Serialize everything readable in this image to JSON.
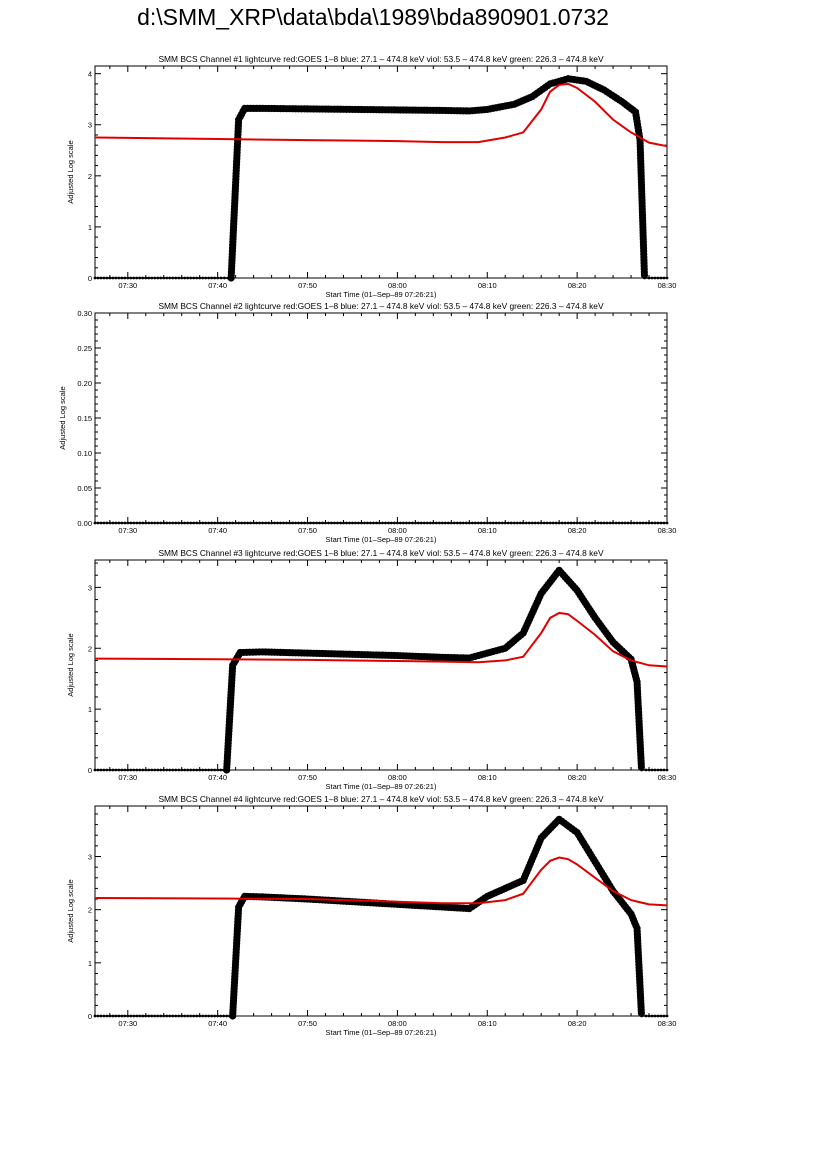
{
  "page_title": "d:\\SMM_XRP\\data\\bda\\1989\\bda890901.0732",
  "colors": {
    "goes": "#e00000",
    "bcs": "#000000",
    "axis": "#000000"
  },
  "chart_data": [
    {
      "type": "scatter",
      "title": "SMM BCS Channel #1 lightcurve  red:GOES 1–8  blue: 27.1 – 474.8 keV  viol: 53.5 – 474.8 keV  green: 226.3 – 474.8 keV",
      "xlabel": "Start Time (01–Sep–89 07:26:21)",
      "ylabel": "Adjusted Log scale",
      "xlim": [
        "07:26:21",
        "08:30"
      ],
      "ylim": [
        0,
        4.15
      ],
      "x_ticks": [
        "07:30",
        "07:40",
        "07:50",
        "08:00",
        "08:10",
        "08:20",
        "08:30"
      ],
      "y_ticks": [
        "0",
        "1",
        "2",
        "3",
        "4"
      ],
      "series": [
        {
          "color": "black",
          "style": "markers",
          "x": [
            "07:26:21",
            "07:30",
            "07:35",
            "07:40",
            "07:41:30",
            "07:42:20",
            "07:43",
            "07:45",
            "07:50",
            "07:55",
            "08:00",
            "08:05",
            "08:08",
            "08:10",
            "08:13",
            "08:15",
            "08:17",
            "08:19",
            "08:21",
            "08:23",
            "08:25",
            "08:26:30",
            "08:27:00",
            "08:27:30",
            "08:28",
            "08:30"
          ],
          "y": [
            0,
            0,
            0,
            0,
            0,
            3.1,
            3.32,
            3.32,
            3.31,
            3.3,
            3.29,
            3.28,
            3.27,
            3.3,
            3.4,
            3.55,
            3.8,
            3.9,
            3.85,
            3.68,
            3.45,
            3.25,
            2.7,
            0,
            0,
            0
          ]
        },
        {
          "color": "red",
          "style": "line",
          "x": [
            "07:26:21",
            "07:40",
            "07:50",
            "08:00",
            "08:05",
            "08:09",
            "08:12",
            "08:14",
            "08:16",
            "08:17",
            "08:18",
            "08:19",
            "08:20",
            "08:22",
            "08:24",
            "08:26",
            "08:28",
            "08:30"
          ],
          "y": [
            2.75,
            2.72,
            2.7,
            2.68,
            2.66,
            2.66,
            2.75,
            2.85,
            3.3,
            3.65,
            3.78,
            3.8,
            3.72,
            3.45,
            3.1,
            2.85,
            2.65,
            2.58
          ]
        }
      ]
    },
    {
      "type": "scatter",
      "title": "SMM BCS Channel #2 lightcurve  red:GOES 1–8  blue: 27.1 – 474.8 keV  viol: 53.5 – 474.8 keV  green: 226.3 – 474.8 keV",
      "xlabel": "Start Time (01–Sep–89 07:26:21)",
      "ylabel": "Adjusted Log scale",
      "xlim": [
        "07:26:21",
        "08:30"
      ],
      "ylim": [
        0,
        0.3
      ],
      "x_ticks": [
        "07:30",
        "07:40",
        "07:50",
        "08:00",
        "08:10",
        "08:20",
        "08:30"
      ],
      "y_ticks": [
        "0.00",
        "0.05",
        "0.10",
        "0.15",
        "0.20",
        "0.25",
        "0.30"
      ],
      "series": [
        {
          "color": "black",
          "style": "markers",
          "x": [
            "07:26:21",
            "07:35",
            "07:45",
            "07:55",
            "08:05",
            "08:15",
            "08:25",
            "08:30"
          ],
          "y": [
            0,
            0,
            0,
            0,
            0,
            0,
            0,
            0
          ]
        }
      ]
    },
    {
      "type": "scatter",
      "title": "SMM BCS Channel #3 lightcurve  red:GOES 1–8  blue: 27.1 – 474.8 keV  viol: 53.5 – 474.8 keV  green: 226.3 – 474.8 keV",
      "xlabel": "Start Time (01–Sep–89 07:26:21)",
      "ylabel": "Adjusted Log scale",
      "xlim": [
        "07:26:21",
        "08:30"
      ],
      "ylim": [
        0,
        3.45
      ],
      "x_ticks": [
        "07:30",
        "07:40",
        "07:50",
        "08:00",
        "08:10",
        "08:20",
        "08:30"
      ],
      "y_ticks": [
        "0",
        "1",
        "2",
        "3"
      ],
      "series": [
        {
          "color": "black",
          "style": "markers",
          "x": [
            "07:26:21",
            "07:30",
            "07:35",
            "07:40",
            "07:41:00",
            "07:41:40",
            "07:42:30",
            "07:45",
            "07:50",
            "07:55",
            "08:00",
            "08:05",
            "08:08",
            "08:10",
            "08:12",
            "08:14",
            "08:16",
            "08:18",
            "08:20",
            "08:22",
            "08:24",
            "08:26",
            "08:26:40",
            "08:27:10",
            "08:27:40",
            "08:30"
          ],
          "y": [
            0,
            0,
            0,
            0,
            0,
            1.72,
            1.93,
            1.94,
            1.92,
            1.9,
            1.88,
            1.85,
            1.84,
            1.92,
            2.0,
            2.25,
            2.9,
            3.28,
            2.95,
            2.5,
            2.1,
            1.82,
            1.45,
            0,
            0,
            0
          ]
        },
        {
          "color": "red",
          "style": "line",
          "x": [
            "07:26:21",
            "07:40",
            "07:50",
            "08:00",
            "08:05",
            "08:09",
            "08:12",
            "08:14",
            "08:16",
            "08:17",
            "08:18",
            "08:19",
            "08:20",
            "08:22",
            "08:24",
            "08:26",
            "08:28",
            "08:30"
          ],
          "y": [
            1.83,
            1.82,
            1.81,
            1.79,
            1.78,
            1.77,
            1.8,
            1.86,
            2.25,
            2.5,
            2.58,
            2.56,
            2.45,
            2.22,
            1.95,
            1.8,
            1.72,
            1.7
          ]
        }
      ]
    },
    {
      "type": "scatter",
      "title": "SMM BCS Channel #4 lightcurve  red:GOES 1–8  blue: 27.1 – 474.8 keV  viol: 53.5 – 474.8 keV  green: 226.3 – 474.8 keV",
      "xlabel": "Start Time (01–Sep–89 07:26:21)",
      "ylabel": "Adjusted Log scale",
      "xlim": [
        "07:26:21",
        "08:30"
      ],
      "ylim": [
        0,
        3.95
      ],
      "x_ticks": [
        "07:30",
        "07:40",
        "07:50",
        "08:00",
        "08:10",
        "08:20",
        "08:30"
      ],
      "y_ticks": [
        "0",
        "1",
        "2",
        "3"
      ],
      "series": [
        {
          "color": "black",
          "style": "markers",
          "x": [
            "07:26:21",
            "07:30",
            "07:35",
            "07:40",
            "07:41:40",
            "07:42:20",
            "07:43",
            "07:45",
            "07:50",
            "07:55",
            "08:00",
            "08:05",
            "08:08",
            "08:10",
            "08:12",
            "08:14",
            "08:16",
            "08:18",
            "08:20",
            "08:22",
            "08:24",
            "08:26",
            "08:26:40",
            "08:27:10",
            "08:27:40",
            "08:30"
          ],
          "y": [
            0,
            0,
            0,
            0,
            0,
            2.05,
            2.25,
            2.24,
            2.2,
            2.15,
            2.1,
            2.05,
            2.02,
            2.25,
            2.4,
            2.55,
            3.35,
            3.7,
            3.45,
            2.9,
            2.35,
            1.92,
            1.65,
            0,
            0,
            0
          ]
        },
        {
          "color": "red",
          "style": "line",
          "x": [
            "07:26:21",
            "07:40",
            "07:50",
            "08:00",
            "08:05",
            "08:09",
            "08:12",
            "08:14",
            "08:16",
            "08:17",
            "08:18",
            "08:19",
            "08:20",
            "08:22",
            "08:24",
            "08:26",
            "08:28",
            "08:30"
          ],
          "y": [
            2.22,
            2.21,
            2.2,
            2.15,
            2.12,
            2.12,
            2.18,
            2.3,
            2.75,
            2.92,
            2.98,
            2.95,
            2.85,
            2.6,
            2.35,
            2.18,
            2.1,
            2.08
          ]
        }
      ]
    }
  ]
}
